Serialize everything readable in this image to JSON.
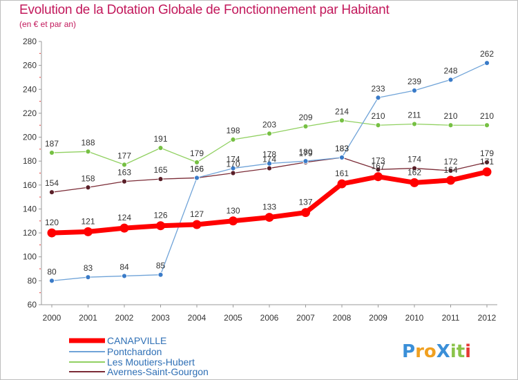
{
  "chart_data": {
    "type": "line",
    "title": "Evolution de la Dotation Globale de Fonctionnement par Habitant",
    "subtitle": "(en € et par an)",
    "categories": [
      "2000",
      "2001",
      "2002",
      "2003",
      "2004",
      "2005",
      "2006",
      "2007",
      "2008",
      "2009",
      "2010",
      "2011",
      "2012"
    ],
    "ylim": [
      60,
      280
    ],
    "yticks": [
      60,
      80,
      100,
      120,
      140,
      160,
      180,
      200,
      220,
      240,
      260,
      280
    ],
    "grid": false,
    "legend_position": "bottom-left",
    "series": [
      {
        "name": "CANAPVILLE",
        "color": "#ff0000",
        "values": [
          120,
          121,
          124,
          126,
          127,
          130,
          133,
          137,
          161,
          167,
          162,
          164,
          171
        ]
      },
      {
        "name": "Pontchardon",
        "color": "#6fa3d8",
        "values": [
          80,
          83,
          84,
          85,
          166,
          174,
          178,
          180,
          183,
          233,
          239,
          248,
          262
        ]
      },
      {
        "name": "Les Moutiers-Hubert",
        "color": "#90d060",
        "values": [
          187,
          188,
          177,
          191,
          179,
          198,
          203,
          209,
          214,
          210,
          211,
          210,
          210
        ]
      },
      {
        "name": "Avernes-Saint-Gourgon",
        "color": "#7a2a35",
        "values": [
          154,
          158,
          163,
          165,
          166,
          170,
          174,
          179,
          183,
          173,
          174,
          172,
          179
        ]
      }
    ]
  },
  "branding": {
    "logo_text": "ProXiti",
    "logo_letters": [
      "P",
      "r",
      "o",
      "X",
      "i",
      "t",
      "i"
    ],
    "logo_colors": [
      "#3a8fd8",
      "#f0a020",
      "#f0a020",
      "#3a8fd8",
      "#8bc34a",
      "#8bc34a",
      "#e53935"
    ]
  }
}
